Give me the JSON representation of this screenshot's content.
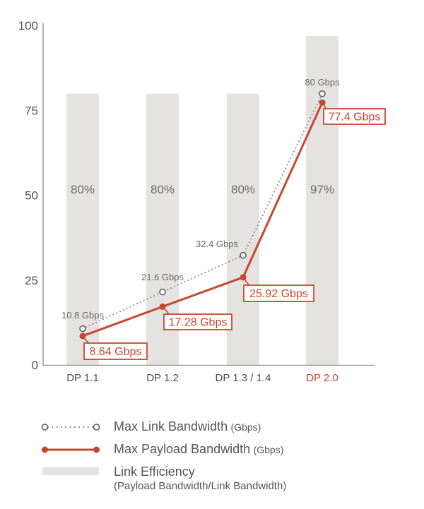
{
  "chart_data": {
    "type": "combo",
    "categories": [
      "DP 1.1",
      "DP 1.2",
      "DP 1.3 / 1.4",
      "DP 2.0"
    ],
    "highlight_category": "DP 2.0",
    "yticks": [
      "0",
      "25",
      "50",
      "75",
      "100"
    ],
    "ytick_values": [
      0,
      25,
      50,
      75,
      100
    ],
    "ylim": [
      0,
      100
    ],
    "grid": false,
    "legend_position": "bottom",
    "series": [
      {
        "name": "Max Link Bandwidth",
        "unit": "Gbps",
        "type": "line",
        "style": "dotted",
        "color": "#8c8c8c",
        "values": [
          10.8,
          21.6,
          32.4,
          80
        ],
        "labels": [
          "10.8 Gbps",
          "21.6 Gbps",
          "32.4 Gbps",
          "80 Gbps"
        ]
      },
      {
        "name": "Max Payload Bandwidth",
        "unit": "Gbps",
        "type": "line",
        "style": "solid",
        "color": "#ca452f",
        "values": [
          8.64,
          17.28,
          25.92,
          77.4
        ],
        "labels": [
          "8.64 Gbps",
          "17.28 Gbps",
          "25.92 Gbps",
          "77.4 Gbps"
        ]
      },
      {
        "name": "Link Efficiency",
        "unit": "%",
        "type": "bar",
        "color": "#e4e3e1",
        "values": [
          80,
          80,
          80,
          97
        ],
        "labels": [
          "80%",
          "80%",
          "80%",
          "97%"
        ]
      }
    ]
  },
  "legend": {
    "items": [
      {
        "label": "Max Link Bandwidth",
        "suffix": "(Gbps)"
      },
      {
        "label": "Max Payload Bandwidth",
        "suffix": "(Gbps)"
      },
      {
        "label": "Link Efficiency",
        "sublabel": "(Payload Bandwidth/Link Bandwidth)"
      }
    ]
  },
  "colors": {
    "accent_red": "#ca452f",
    "bar_gray": "#e4e3e1",
    "dotted_gray": "#8c8c8c",
    "axis_gray": "#a0a0a0",
    "tick_text": "#57575b",
    "percent_text": "#6d6c68",
    "link_label_text": "#6a6a6a",
    "category_text": "#4f4f52",
    "legend_text": "#56555a",
    "background": "#ffffff"
  }
}
